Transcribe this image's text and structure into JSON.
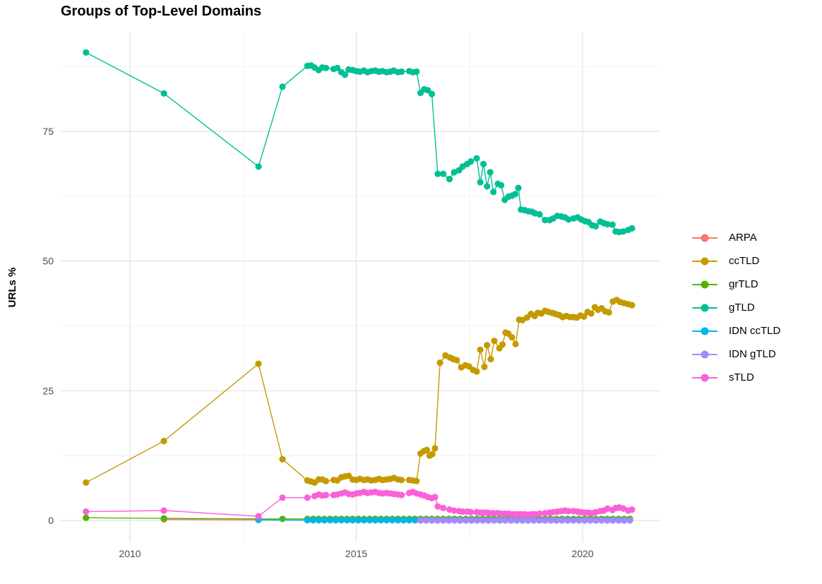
{
  "title": "Groups of Top-Level Domains",
  "axes": {
    "y_label": "URLs %",
    "y_ticks": [
      {
        "label": "0",
        "value": 0
      },
      {
        "label": "25",
        "value": 25
      },
      {
        "label": "50",
        "value": 50
      },
      {
        "label": "75",
        "value": 75
      }
    ],
    "y_minor_values": [
      12.5,
      37.5,
      62.5,
      87.5
    ],
    "x_ticks": [
      {
        "label": "2010",
        "value": 2010
      },
      {
        "label": "2015",
        "value": 2015
      },
      {
        "label": "2020",
        "value": 2020
      }
    ],
    "x_minor_values": [
      2012.5,
      2017.5
    ],
    "x_range": [
      2008.5,
      2021.72
    ],
    "y_range": [
      -4.6,
      94.2
    ],
    "grid": "on",
    "legend_position": "right"
  },
  "chart_data": {
    "type": "scatter",
    "style": "points connected by thin lines",
    "title": "Groups of Top-Level Domains",
    "xlabel": "",
    "ylabel": "URLs %",
    "series": [
      {
        "name": "arpa",
        "label": "ARPA",
        "color": "#F8766D",
        "points": [
          [
            2010.75,
            0.2
          ],
          [
            2012.84,
            0.1
          ]
        ],
        "flat_run": {
          "from": 2013.92,
          "to": 2021.09,
          "step": 0.125,
          "y": 0.05
        }
      },
      {
        "name": "cctld",
        "label": "ccTLD",
        "color": "#C49A00",
        "points": [
          [
            2009.03,
            7.3
          ],
          [
            2010.75,
            15.3
          ],
          [
            2012.84,
            30.2
          ],
          [
            2013.37,
            11.8
          ],
          [
            2013.92,
            7.7
          ],
          [
            2014.0,
            7.5
          ],
          [
            2014.08,
            7.3
          ],
          [
            2014.17,
            7.9
          ],
          [
            2014.25,
            7.9
          ],
          [
            2014.33,
            7.6
          ],
          [
            2014.5,
            7.8
          ],
          [
            2014.58,
            7.7
          ],
          [
            2014.67,
            8.3
          ],
          [
            2014.75,
            8.5
          ],
          [
            2014.83,
            8.6
          ],
          [
            2014.92,
            7.9
          ],
          [
            2015.0,
            7.8
          ],
          [
            2015.08,
            8.0
          ],
          [
            2015.17,
            7.8
          ],
          [
            2015.25,
            7.9
          ],
          [
            2015.33,
            7.7
          ],
          [
            2015.42,
            7.8
          ],
          [
            2015.5,
            8.0
          ],
          [
            2015.58,
            7.8
          ],
          [
            2015.67,
            7.9
          ],
          [
            2015.75,
            8.0
          ],
          [
            2015.83,
            8.2
          ],
          [
            2015.92,
            7.9
          ],
          [
            2016.0,
            7.8
          ],
          [
            2016.17,
            7.8
          ],
          [
            2016.25,
            7.7
          ],
          [
            2016.33,
            7.6
          ],
          [
            2016.42,
            12.9
          ],
          [
            2016.5,
            13.4
          ],
          [
            2016.56,
            13.6
          ],
          [
            2016.62,
            12.5
          ],
          [
            2016.68,
            12.8
          ],
          [
            2016.74,
            13.9
          ],
          [
            2016.85,
            30.4
          ],
          [
            2016.97,
            31.8
          ],
          [
            2017.07,
            31.4
          ],
          [
            2017.14,
            31.1
          ],
          [
            2017.22,
            30.9
          ],
          [
            2017.32,
            29.5
          ],
          [
            2017.41,
            29.9
          ],
          [
            2017.49,
            29.7
          ],
          [
            2017.58,
            29.0
          ],
          [
            2017.66,
            28.7
          ],
          [
            2017.74,
            32.9
          ],
          [
            2017.83,
            29.6
          ],
          [
            2017.89,
            33.8
          ],
          [
            2017.97,
            31.1
          ],
          [
            2018.05,
            34.6
          ],
          [
            2018.16,
            33.2
          ],
          [
            2018.23,
            33.9
          ],
          [
            2018.3,
            36.2
          ],
          [
            2018.36,
            36.0
          ],
          [
            2018.44,
            35.3
          ],
          [
            2018.52,
            34.0
          ],
          [
            2018.6,
            38.7
          ],
          [
            2018.67,
            38.6
          ],
          [
            2018.77,
            39.1
          ],
          [
            2018.86,
            39.8
          ],
          [
            2018.94,
            39.4
          ],
          [
            2019.01,
            40.0
          ],
          [
            2019.09,
            39.9
          ],
          [
            2019.17,
            40.4
          ],
          [
            2019.25,
            40.2
          ],
          [
            2019.33,
            40.0
          ],
          [
            2019.4,
            39.8
          ],
          [
            2019.48,
            39.6
          ],
          [
            2019.56,
            39.2
          ],
          [
            2019.64,
            39.4
          ],
          [
            2019.72,
            39.2
          ],
          [
            2019.8,
            39.2
          ],
          [
            2019.87,
            39.1
          ],
          [
            2019.95,
            39.5
          ],
          [
            2020.03,
            39.3
          ],
          [
            2020.11,
            40.2
          ],
          [
            2020.19,
            39.9
          ],
          [
            2020.27,
            41.1
          ],
          [
            2020.34,
            40.6
          ],
          [
            2020.42,
            40.9
          ],
          [
            2020.5,
            40.3
          ],
          [
            2020.58,
            40.1
          ],
          [
            2020.67,
            42.2
          ],
          [
            2020.75,
            42.5
          ],
          [
            2020.83,
            42.1
          ],
          [
            2020.91,
            41.9
          ],
          [
            2021.0,
            41.7
          ],
          [
            2021.09,
            41.5
          ]
        ],
        "flat_run": null
      },
      {
        "name": "grtld",
        "label": "grTLD",
        "color": "#53B400",
        "points": [
          [
            2009.03,
            0.5
          ],
          [
            2010.75,
            0.4
          ],
          [
            2012.84,
            0.3
          ],
          [
            2013.37,
            0.3
          ]
        ],
        "flat_run": {
          "from": 2013.92,
          "to": 2021.09,
          "step": 0.125,
          "y": 0.3
        }
      },
      {
        "name": "gtld",
        "label": "gTLD",
        "color": "#00C094",
        "points": [
          [
            2009.03,
            90.2
          ],
          [
            2010.75,
            82.3
          ],
          [
            2012.84,
            68.2
          ],
          [
            2013.37,
            83.6
          ],
          [
            2013.92,
            87.6
          ],
          [
            2014.0,
            87.7
          ],
          [
            2014.08,
            87.3
          ],
          [
            2014.17,
            86.8
          ],
          [
            2014.25,
            87.3
          ],
          [
            2014.33,
            87.2
          ],
          [
            2014.5,
            87.0
          ],
          [
            2014.58,
            87.2
          ],
          [
            2014.67,
            86.4
          ],
          [
            2014.75,
            85.9
          ],
          [
            2014.83,
            86.9
          ],
          [
            2014.92,
            86.8
          ],
          [
            2015.0,
            86.6
          ],
          [
            2015.08,
            86.5
          ],
          [
            2015.17,
            86.7
          ],
          [
            2015.25,
            86.4
          ],
          [
            2015.33,
            86.6
          ],
          [
            2015.42,
            86.7
          ],
          [
            2015.5,
            86.5
          ],
          [
            2015.58,
            86.6
          ],
          [
            2015.67,
            86.4
          ],
          [
            2015.75,
            86.5
          ],
          [
            2015.83,
            86.7
          ],
          [
            2015.92,
            86.4
          ],
          [
            2016.0,
            86.5
          ],
          [
            2016.17,
            86.6
          ],
          [
            2016.25,
            86.4
          ],
          [
            2016.33,
            86.5
          ],
          [
            2016.42,
            82.4
          ],
          [
            2016.5,
            83.1
          ],
          [
            2016.58,
            82.9
          ],
          [
            2016.67,
            82.2
          ],
          [
            2016.8,
            66.8
          ],
          [
            2016.92,
            66.8
          ],
          [
            2017.06,
            65.8
          ],
          [
            2017.16,
            67.1
          ],
          [
            2017.27,
            67.5
          ],
          [
            2017.35,
            68.2
          ],
          [
            2017.45,
            68.7
          ],
          [
            2017.53,
            69.2
          ],
          [
            2017.66,
            69.8
          ],
          [
            2017.74,
            65.2
          ],
          [
            2017.81,
            68.7
          ],
          [
            2017.89,
            64.4
          ],
          [
            2017.96,
            67.1
          ],
          [
            2018.03,
            63.3
          ],
          [
            2018.13,
            64.9
          ],
          [
            2018.2,
            64.6
          ],
          [
            2018.28,
            61.8
          ],
          [
            2018.36,
            62.4
          ],
          [
            2018.44,
            62.6
          ],
          [
            2018.51,
            62.9
          ],
          [
            2018.58,
            64.1
          ],
          [
            2018.64,
            59.9
          ],
          [
            2018.72,
            59.8
          ],
          [
            2018.8,
            59.6
          ],
          [
            2018.88,
            59.5
          ],
          [
            2018.95,
            59.2
          ],
          [
            2019.05,
            59.0
          ],
          [
            2019.17,
            57.9
          ],
          [
            2019.27,
            57.9
          ],
          [
            2019.35,
            58.2
          ],
          [
            2019.44,
            58.7
          ],
          [
            2019.53,
            58.6
          ],
          [
            2019.61,
            58.4
          ],
          [
            2019.69,
            58.0
          ],
          [
            2019.8,
            58.2
          ],
          [
            2019.89,
            58.4
          ],
          [
            2019.97,
            58.0
          ],
          [
            2020.05,
            57.7
          ],
          [
            2020.13,
            57.5
          ],
          [
            2020.21,
            56.9
          ],
          [
            2020.29,
            56.7
          ],
          [
            2020.39,
            57.6
          ],
          [
            2020.47,
            57.3
          ],
          [
            2020.55,
            57.1
          ],
          [
            2020.66,
            57.0
          ],
          [
            2020.73,
            55.7
          ],
          [
            2020.81,
            55.6
          ],
          [
            2020.9,
            55.7
          ],
          [
            2021.01,
            56.0
          ],
          [
            2021.09,
            56.3
          ]
        ],
        "flat_run": null
      },
      {
        "name": "idn-cctld",
        "label": "IDN ccTLD",
        "color": "#00B6EB",
        "points": [
          [
            2012.84,
            0.1
          ]
        ],
        "flat_run": {
          "from": 2013.92,
          "to": 2021.09,
          "step": 0.125,
          "y": 0.05
        }
      },
      {
        "name": "idn-gtld",
        "label": "IDN gTLD",
        "color": "#A58AFF",
        "points": [],
        "flat_run": {
          "from": 2016.42,
          "to": 2021.09,
          "step": 0.125,
          "y": 0.0
        }
      },
      {
        "name": "stld",
        "label": "sTLD",
        "color": "#FB61D7",
        "points": [
          [
            2009.03,
            1.7
          ],
          [
            2010.75,
            1.9
          ],
          [
            2012.84,
            0.8
          ],
          [
            2013.37,
            4.4
          ],
          [
            2013.92,
            4.4
          ],
          [
            2014.08,
            4.7
          ],
          [
            2014.17,
            5.0
          ],
          [
            2014.25,
            4.8
          ],
          [
            2014.33,
            4.9
          ],
          [
            2014.5,
            4.9
          ],
          [
            2014.58,
            5.0
          ],
          [
            2014.67,
            5.2
          ],
          [
            2014.75,
            5.4
          ],
          [
            2014.83,
            5.1
          ],
          [
            2014.92,
            5.0
          ],
          [
            2015.0,
            5.2
          ],
          [
            2015.08,
            5.3
          ],
          [
            2015.17,
            5.5
          ],
          [
            2015.25,
            5.3
          ],
          [
            2015.33,
            5.4
          ],
          [
            2015.42,
            5.5
          ],
          [
            2015.5,
            5.3
          ],
          [
            2015.58,
            5.2
          ],
          [
            2015.67,
            5.3
          ],
          [
            2015.75,
            5.2
          ],
          [
            2015.83,
            5.1
          ],
          [
            2015.92,
            5.0
          ],
          [
            2016.0,
            4.9
          ],
          [
            2016.17,
            5.3
          ],
          [
            2016.25,
            5.5
          ],
          [
            2016.33,
            5.2
          ],
          [
            2016.42,
            5.0
          ],
          [
            2016.5,
            4.8
          ],
          [
            2016.58,
            4.5
          ],
          [
            2016.67,
            4.3
          ],
          [
            2016.74,
            4.5
          ],
          [
            2016.8,
            2.7
          ],
          [
            2016.92,
            2.4
          ],
          [
            2017.06,
            2.1
          ],
          [
            2017.16,
            1.9
          ],
          [
            2017.27,
            1.8
          ],
          [
            2017.35,
            1.7
          ],
          [
            2017.45,
            1.7
          ],
          [
            2017.53,
            1.6
          ],
          [
            2017.66,
            1.6
          ],
          [
            2017.74,
            1.5
          ],
          [
            2017.81,
            1.5
          ],
          [
            2017.89,
            1.5
          ],
          [
            2017.96,
            1.4
          ],
          [
            2018.03,
            1.4
          ],
          [
            2018.13,
            1.4
          ],
          [
            2018.2,
            1.3
          ],
          [
            2018.28,
            1.3
          ],
          [
            2018.36,
            1.3
          ],
          [
            2018.44,
            1.2
          ],
          [
            2018.51,
            1.2
          ],
          [
            2018.58,
            1.2
          ],
          [
            2018.64,
            1.2
          ],
          [
            2018.72,
            1.2
          ],
          [
            2018.8,
            1.1
          ],
          [
            2018.88,
            1.2
          ],
          [
            2018.95,
            1.2
          ],
          [
            2019.05,
            1.3
          ],
          [
            2019.17,
            1.4
          ],
          [
            2019.27,
            1.5
          ],
          [
            2019.35,
            1.6
          ],
          [
            2019.44,
            1.7
          ],
          [
            2019.53,
            1.8
          ],
          [
            2019.61,
            1.9
          ],
          [
            2019.69,
            1.8
          ],
          [
            2019.8,
            1.8
          ],
          [
            2019.89,
            1.7
          ],
          [
            2019.97,
            1.6
          ],
          [
            2020.05,
            1.5
          ],
          [
            2020.13,
            1.5
          ],
          [
            2020.21,
            1.4
          ],
          [
            2020.29,
            1.6
          ],
          [
            2020.39,
            1.8
          ],
          [
            2020.47,
            1.9
          ],
          [
            2020.55,
            2.3
          ],
          [
            2020.66,
            2.0
          ],
          [
            2020.73,
            2.4
          ],
          [
            2020.81,
            2.5
          ],
          [
            2020.9,
            2.3
          ],
          [
            2021.01,
            1.9
          ],
          [
            2021.09,
            2.1
          ]
        ],
        "flat_run": null
      }
    ]
  },
  "colors": {
    "background": "#ffffff",
    "grid_major": "#e7e7e7",
    "grid_minor": "#f2f2f2",
    "tick_text": "#4d4d4d",
    "title_text": "#000000"
  }
}
